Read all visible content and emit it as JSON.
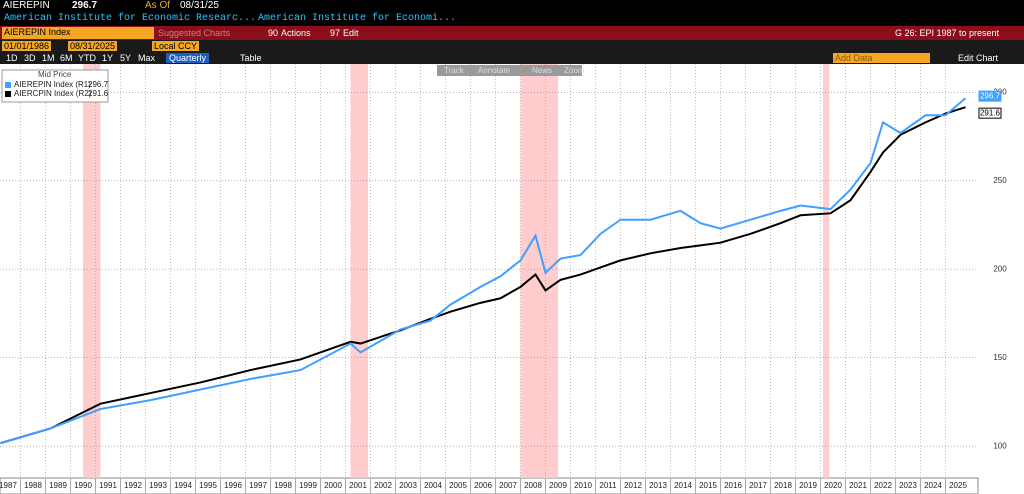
{
  "header": {
    "ticker": "AIEREPIN",
    "as_of_label": "As Of",
    "as_of": "08/31/25",
    "desc1": "American Institute for Economic Researc...",
    "desc2": "American Institute for Economi..."
  },
  "toolbar": {
    "security": "AIEREPIN Index",
    "suggested": "Suggested Charts",
    "actions_key": "90",
    "actions": "Actions",
    "edit_key": "97",
    "edit": "Edit",
    "chart_name": "G 26: EPI 1987 to present",
    "start_date": "01/01/1986",
    "end_date": "08/31/2025",
    "currency": "Local CCY",
    "periods": [
      "1D",
      "3D",
      "1M",
      "6M",
      "YTD",
      "1Y",
      "5Y",
      "Max"
    ],
    "frequency": "Quarterly",
    "table": "Table",
    "add_data": "Add Data",
    "edit_chart": "Edit Chart",
    "tools": [
      "Track",
      "Annotate",
      "News",
      "Zoom"
    ]
  },
  "chart_data": {
    "type": "line",
    "legend_title": "Mid Price",
    "x": [
      1987.2,
      1989.2,
      1991.2,
      1993.2,
      1995.2,
      1997.2,
      1999.2,
      2001.2,
      2001.6,
      2003.2,
      2004.4,
      2005.2,
      2006.4,
      2007.2,
      2008.0,
      2008.6,
      2009.0,
      2009.6,
      2010.4,
      2011.2,
      2012.0,
      2013.2,
      2014.4,
      2015.2,
      2016.0,
      2017.2,
      2018.4,
      2019.2,
      2020.4,
      2021.2,
      2022.0,
      2022.5,
      2023.2,
      2024.2,
      2025.0,
      2025.8
    ],
    "series": [
      {
        "name": "AIEREPIN Index (R1)",
        "color": "#3fa0ff",
        "values": [
          101.7,
          110,
          121,
          126,
          132,
          138,
          143,
          158,
          153,
          166,
          171,
          180,
          190,
          196,
          205,
          219,
          198,
          206,
          208,
          220,
          228,
          228,
          233,
          226,
          223,
          228,
          233,
          236,
          234,
          245,
          260,
          283,
          277,
          287,
          287,
          296.7
        ]
      },
      {
        "name": "AIERCPIN Index (R2)",
        "color": "#000000",
        "values": [
          101.7,
          110,
          124,
          130,
          136,
          143,
          149,
          159,
          158,
          165.5,
          172,
          176,
          181,
          183.6,
          190,
          197,
          188,
          194,
          197,
          201,
          205,
          209,
          212,
          213.5,
          215,
          220,
          226,
          230.5,
          231.6,
          239,
          255,
          266,
          276,
          283,
          288,
          291.6
        ]
      }
    ],
    "xlim": [
      1987.18,
      2026.3
    ],
    "xticks": [
      1987,
      1988,
      1989,
      1990,
      1991,
      1992,
      1993,
      1994,
      1995,
      1996,
      1997,
      1998,
      1999,
      2000,
      2001,
      2002,
      2003,
      2004,
      2005,
      2006,
      2007,
      2008,
      2009,
      2010,
      2011,
      2012,
      2013,
      2014,
      2015,
      2016,
      2017,
      2018,
      2019,
      2020,
      2021,
      2022,
      2023,
      2024,
      2025
    ],
    "ylim": [
      82,
      316
    ],
    "yticks": [
      100,
      150,
      200,
      250,
      300
    ],
    "grid": true,
    "shaded": [
      [
        1990.5,
        1991.2
      ],
      [
        2001.2,
        2001.9
      ],
      [
        2008.0,
        2009.5
      ],
      [
        2020.1,
        2020.35
      ]
    ],
    "shade_color": "#ffc4c4"
  }
}
